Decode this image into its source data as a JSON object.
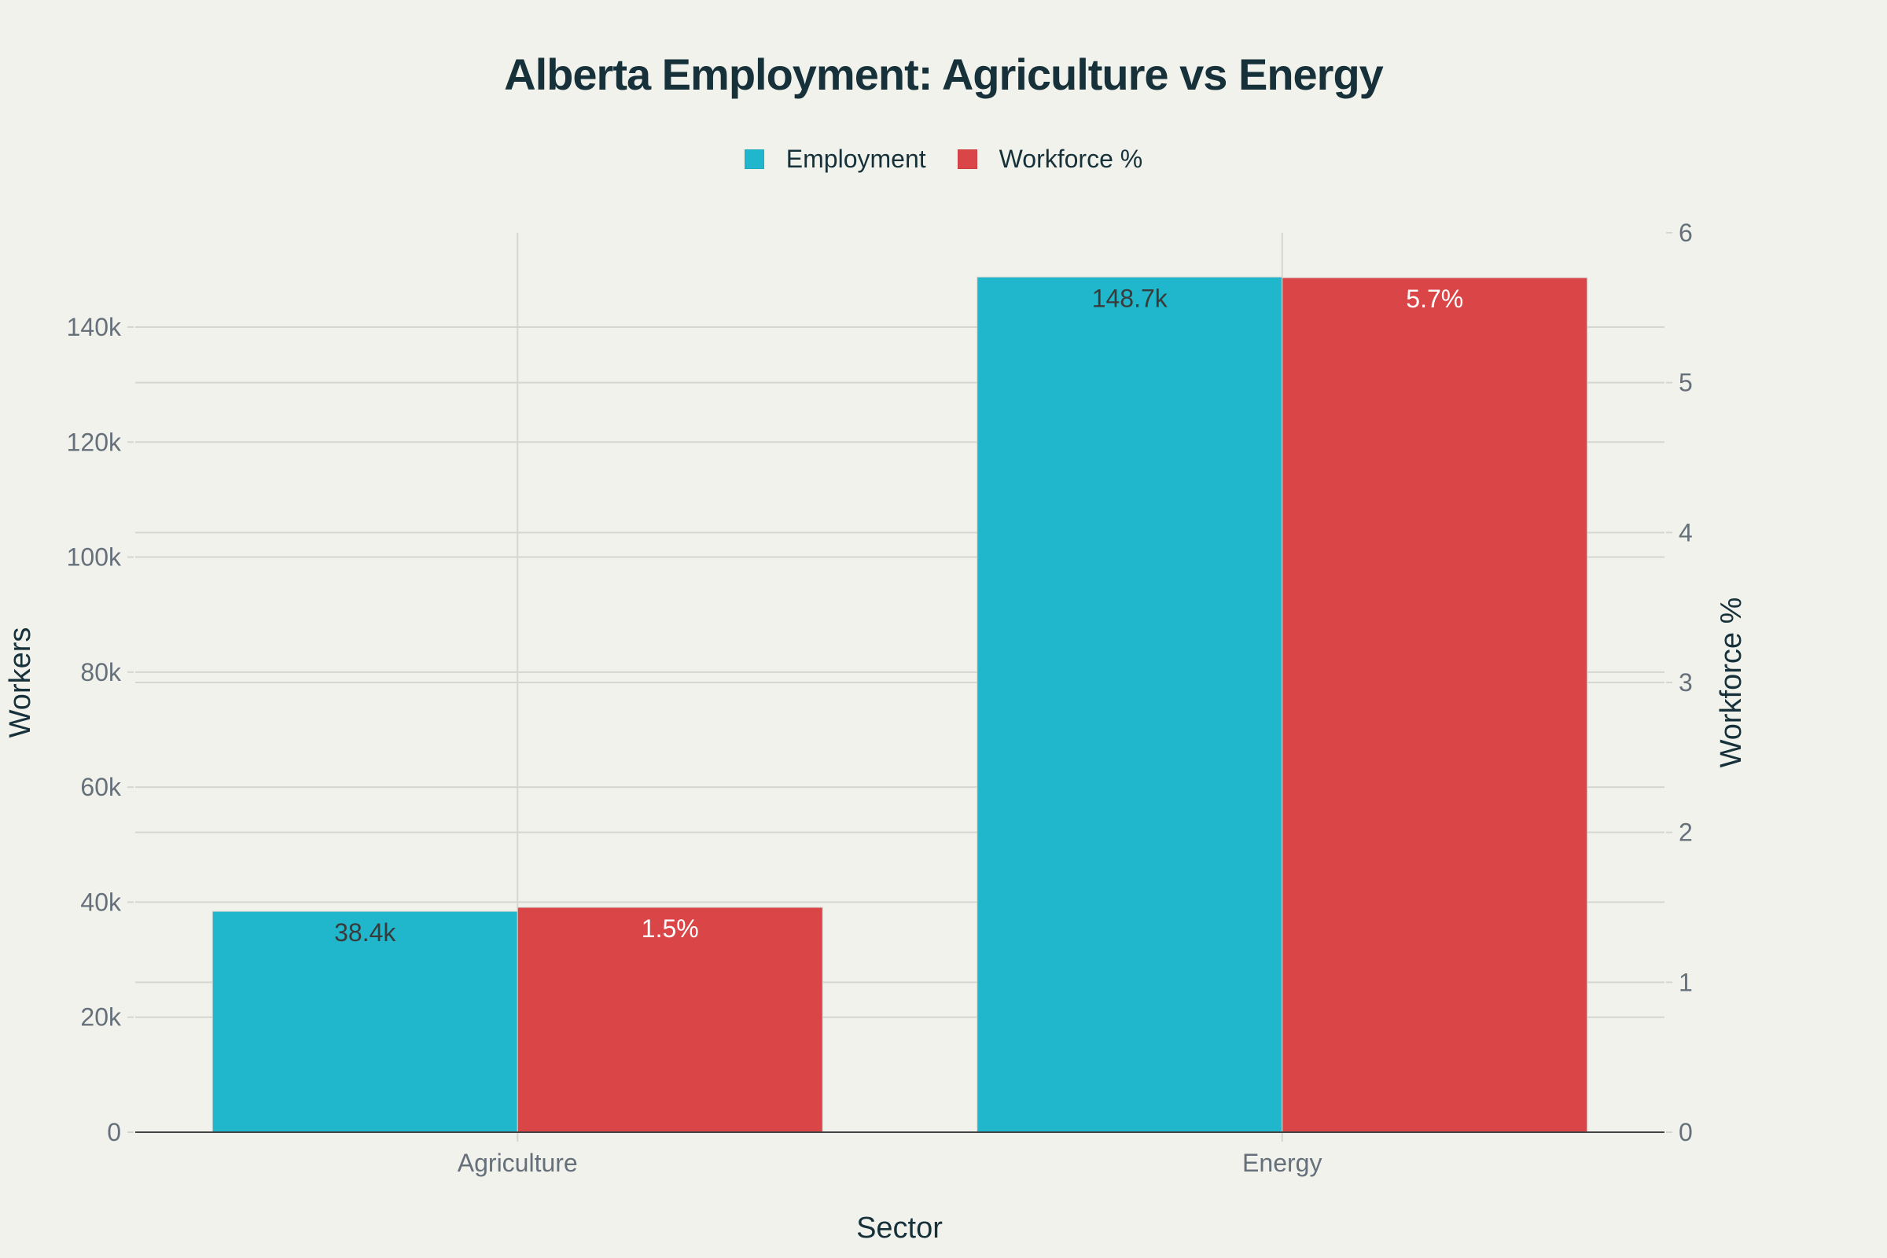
{
  "title": "Alberta Employment: Agriculture vs Energy",
  "legend": [
    {
      "label": "Employment",
      "color": "#20b7cc"
    },
    {
      "label": "Workforce %",
      "color": "#da4547"
    }
  ],
  "axes": {
    "x_title": "Sector",
    "y_left_title": "Workers",
    "y_right_title": "Workforce %",
    "y_left_ticks": [
      "0",
      "20k",
      "40k",
      "60k",
      "80k",
      "100k",
      "120k",
      "140k"
    ],
    "y_right_ticks": [
      "0",
      "1",
      "2",
      "3",
      "4",
      "5",
      "6"
    ],
    "x_ticks": [
      "Agriculture",
      "Energy"
    ]
  },
  "colors": {
    "background": "#f2f2ed",
    "employment": "#20b7cc",
    "workforce": "#da4547",
    "title": "#163139",
    "tick": "#66707a",
    "grid": "#d6d6d1",
    "zeroline": "#444444"
  },
  "chart_data": {
    "type": "bar",
    "title": "Alberta Employment: Agriculture vs Energy",
    "xlabel": "Sector",
    "ylabel": "Workers",
    "y2label": "Workforce %",
    "categories": [
      "Agriculture",
      "Energy"
    ],
    "series": [
      {
        "name": "Employment",
        "axis": "left",
        "values": [
          38400,
          148700
        ],
        "labels": [
          "38.4k",
          "148.7k"
        ],
        "color": "#20b7cc"
      },
      {
        "name": "Workforce %",
        "axis": "right",
        "values": [
          1.5,
          5.7
        ],
        "labels": [
          "1.5%",
          "5.7%"
        ],
        "color": "#da4547"
      }
    ],
    "ylim": [
      0,
      156400
    ],
    "y2lim": [
      0,
      6
    ],
    "grid": true,
    "legend_position": "top-center"
  }
}
